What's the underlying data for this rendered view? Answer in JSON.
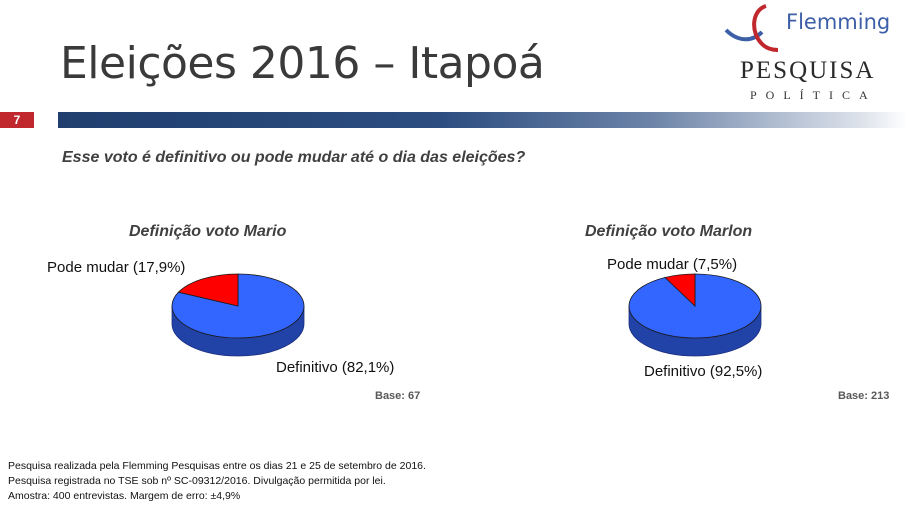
{
  "header": {
    "title": "Eleições 2016 – Itapoá",
    "page_number": "7",
    "logo": {
      "brand": "Flemming",
      "line1": "PESQUISA",
      "line2": "POLÍTICA"
    }
  },
  "question": "Esse voto é definitivo ou pode mudar até o dia das eleições?",
  "colors": {
    "definitivo": "#3366ff",
    "pode_mudar": "#ff0000",
    "bar_dark": "#203f6f",
    "page_badge": "#c0282d"
  },
  "chart_data": [
    {
      "type": "pie",
      "title": "Definição voto Mario",
      "slices": [
        {
          "label": "Definitivo (82,1%)",
          "value": 82.1,
          "color": "#3366ff"
        },
        {
          "label": "Pode mudar (17,9%)",
          "value": 17.9,
          "color": "#ff0000"
        }
      ],
      "base": "Base: 67"
    },
    {
      "type": "pie",
      "title": "Definição voto Marlon",
      "slices": [
        {
          "label": "Definitivo (92,5%)",
          "value": 92.5,
          "color": "#3366ff"
        },
        {
          "label": "Pode mudar (7,5%)",
          "value": 7.5,
          "color": "#ff0000"
        }
      ],
      "base": "Base: 213"
    }
  ],
  "footer": [
    "Pesquisa realizada pela Flemming Pesquisas entre os dias 21 e 25 de setembro de 2016.",
    "Pesquisa registrada no TSE sob nº SC-09312/2016. Divulgação permitida por lei.",
    "Amostra: 400 entrevistas. Margem de erro: ±4,9%"
  ]
}
